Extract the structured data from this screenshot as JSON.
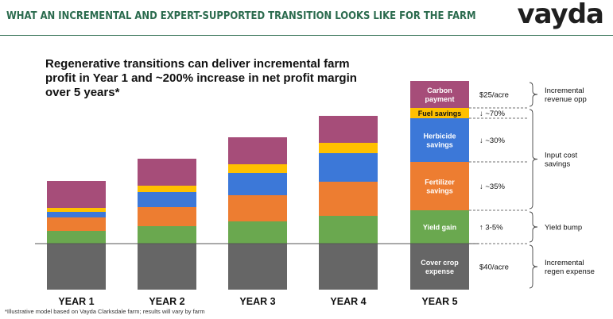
{
  "header": {
    "title": "WHAT AN INCREMENTAL AND EXPERT-SUPPORTED TRANSITION LOOKS LIKE FOR THE FARM",
    "logo": "vayda"
  },
  "footnote": "*Illustrative model based on Vayda Clarksdale farm; results will vary by farm",
  "chart_data": {
    "type": "bar",
    "title": "Regenerative transitions can deliver incremental farm profit in Year 1 and ~200% increase in net profit margin over 5 years*",
    "categories": [
      "YEAR 1",
      "YEAR 2",
      "YEAR 3",
      "YEAR 4",
      "YEAR 5"
    ],
    "stacked": true,
    "series": [
      {
        "name": "Cover crop expense",
        "color": "#666666",
        "values": [
          -58,
          -58,
          -58,
          -58,
          -58
        ]
      },
      {
        "name": "Yield gain",
        "color": "#6aa84f",
        "values": [
          16,
          22,
          28,
          35,
          42
        ]
      },
      {
        "name": "Fertilizer savings",
        "color": "#ed7d31",
        "values": [
          17,
          24,
          33,
          43,
          61
        ]
      },
      {
        "name": "Herbicide savings",
        "color": "#3c78d8",
        "values": [
          7,
          19,
          28,
          36,
          55
        ]
      },
      {
        "name": "Fuel savings",
        "color": "#ffc000",
        "values": [
          5,
          8,
          11,
          13,
          13
        ]
      },
      {
        "name": "Carbon payment",
        "color": "#a64d79",
        "values": [
          34,
          34,
          34,
          34,
          34
        ]
      }
    ],
    "year5_annotations": {
      "Carbon payment": "$25/acre",
      "Fuel savings": "↓ ~70%",
      "Herbicide savings": "↓ ~30%",
      "Fertilizer savings": "↓ ~35%",
      "Yield gain": "↑ 3-5%",
      "Cover crop expense": "$40/acre"
    },
    "year5_segment_labels": {
      "Carbon payment": [
        "Carbon",
        "payment"
      ],
      "Fuel savings": [
        "Fuel savings"
      ],
      "Herbicide savings": [
        "Herbicide",
        "savings"
      ],
      "Fertilizer savings": [
        "Fertilizer",
        "savings"
      ],
      "Yield gain": [
        "Yield gain"
      ],
      "Cover crop expense": [
        "Cover crop",
        "expense"
      ]
    },
    "groups": [
      {
        "label": [
          "Incremental",
          "revenue opp"
        ],
        "from": "Carbon payment",
        "to": "Carbon payment"
      },
      {
        "label": [
          "Input cost",
          "savings"
        ],
        "from": "Fertilizer savings",
        "to": "Fuel savings"
      },
      {
        "label": [
          "Yield bump"
        ],
        "from": "Yield gain",
        "to": "Yield gain"
      },
      {
        "label": [
          "Incremental",
          "regen expense"
        ],
        "from": "Cover crop expense",
        "to": "Cover crop expense"
      }
    ]
  }
}
